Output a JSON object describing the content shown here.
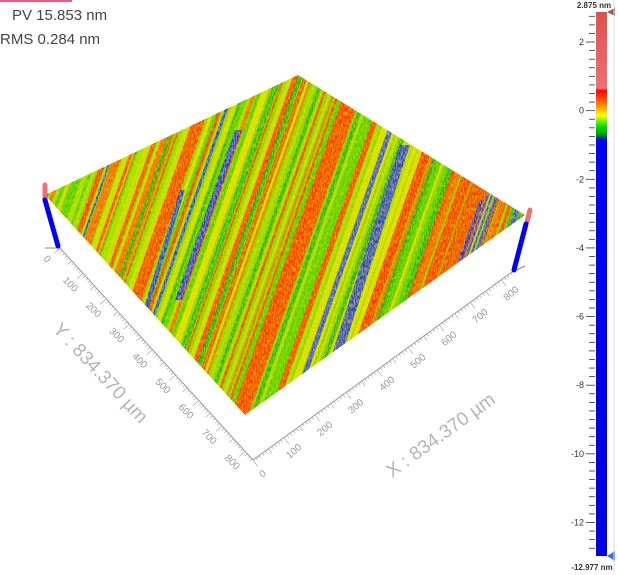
{
  "stats": {
    "pv": "PV 15.853 nm",
    "rms": "RMS 0.284  nm"
  },
  "chart_data": {
    "type": "surface3d",
    "x_axis": {
      "label": "X : 834.370 µm",
      "range": [
        0,
        834.37
      ],
      "ticks": [
        "0",
        "100",
        "200",
        "300",
        "400",
        "500",
        "600",
        "700",
        "800"
      ]
    },
    "y_axis": {
      "label": "Y : 834.370 µm",
      "range": [
        0,
        834.37
      ],
      "ticks": [
        "0",
        "100",
        "200",
        "300",
        "400",
        "500",
        "600",
        "700",
        "800"
      ]
    },
    "z_range_nm": [
      -12.977,
      2.875
    ],
    "colorbar": {
      "max_label": "2.875 nm",
      "min_label": "-12.977 nm",
      "max": 2.875,
      "min": -12.977,
      "ticks": [
        "2",
        "0",
        "-2",
        "-4",
        "-6",
        "-8",
        "-10",
        "-12"
      ],
      "tick_values": [
        2,
        0,
        -2,
        -4,
        -6,
        -8,
        -10,
        -12
      ],
      "colors": {
        "high": "#f06060",
        "red": "#ff0000",
        "yellow": "#ffff00",
        "green": "#00d000",
        "low": "#0000ff"
      }
    },
    "surface_pattern": "diagonal scratch stripes, mostly green/yellow/red with blue grooves"
  }
}
